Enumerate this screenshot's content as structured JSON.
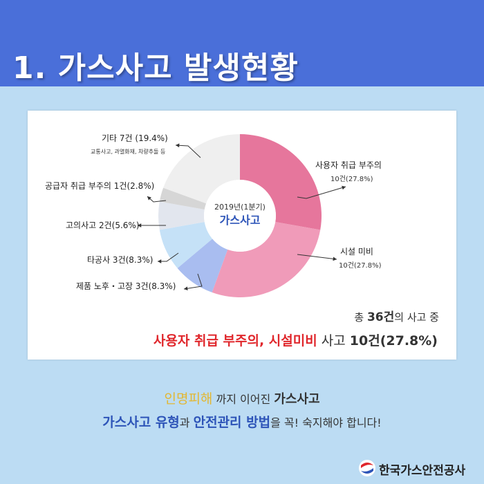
{
  "header": {
    "title": "1. 가스사고 발생현황"
  },
  "chart_data": {
    "type": "pie",
    "center_label_1": "2019년(1분기)",
    "center_label_2": "가스사고",
    "slices": [
      {
        "name": "사용자 취급 부주의",
        "label": "사용자 취급 부주의",
        "sub": "10건(27.8%)",
        "count": 10,
        "percent": 27.8,
        "color": "#e6769c"
      },
      {
        "name": "시설 미비",
        "label": "시설 미비",
        "sub": "10건(27.8%)",
        "count": 10,
        "percent": 27.8,
        "color": "#f09bb9"
      },
      {
        "name": "제품 노후・고장",
        "label": "제품 노후・고장 3건(8.3%)",
        "count": 3,
        "percent": 8.3,
        "color": "#a9bdf0"
      },
      {
        "name": "타공사",
        "label": "타공사 3건(8.3%)",
        "count": 3,
        "percent": 8.3,
        "color": "#c5e1f7"
      },
      {
        "name": "고의사고",
        "label": "고의사고 2건(5.6%)",
        "count": 2,
        "percent": 5.6,
        "color": "#e2e6ee"
      },
      {
        "name": "공급자 취급 부주의",
        "label": "공급자 취급 부주의 1건(2.8%)",
        "count": 1,
        "percent": 2.8,
        "color": "#d6d6d6"
      },
      {
        "name": "기타",
        "label": "기타 7건 (19.4%)",
        "sub": "교통사고, 과열화재, 차량추돌 등",
        "count": 7,
        "percent": 19.4,
        "color": "#efefef"
      }
    ]
  },
  "summary": {
    "line1_prefix": "총 ",
    "line1_num": "36건",
    "line1_suffix": "의 사고 중",
    "line2_red": "사용자 취급 부주의, 시설미비",
    "line2_rest_a": " 사고 ",
    "line2_rest_b": "10건(27.8%)"
  },
  "footer": {
    "a1": "인명피해",
    "a2": " 까지 이어진 ",
    "a3": "가스사고",
    "b1": "가스사고 유형",
    "b2": "과 ",
    "b3": "안전관리 방법",
    "b4": "을 꼭! 숙지해야 합니다!",
    "logo_text": "한국가스안전공사",
    "colors": {
      "gold": "#e2b733",
      "blue": "#2d54b8",
      "red": "#e0262b"
    }
  }
}
